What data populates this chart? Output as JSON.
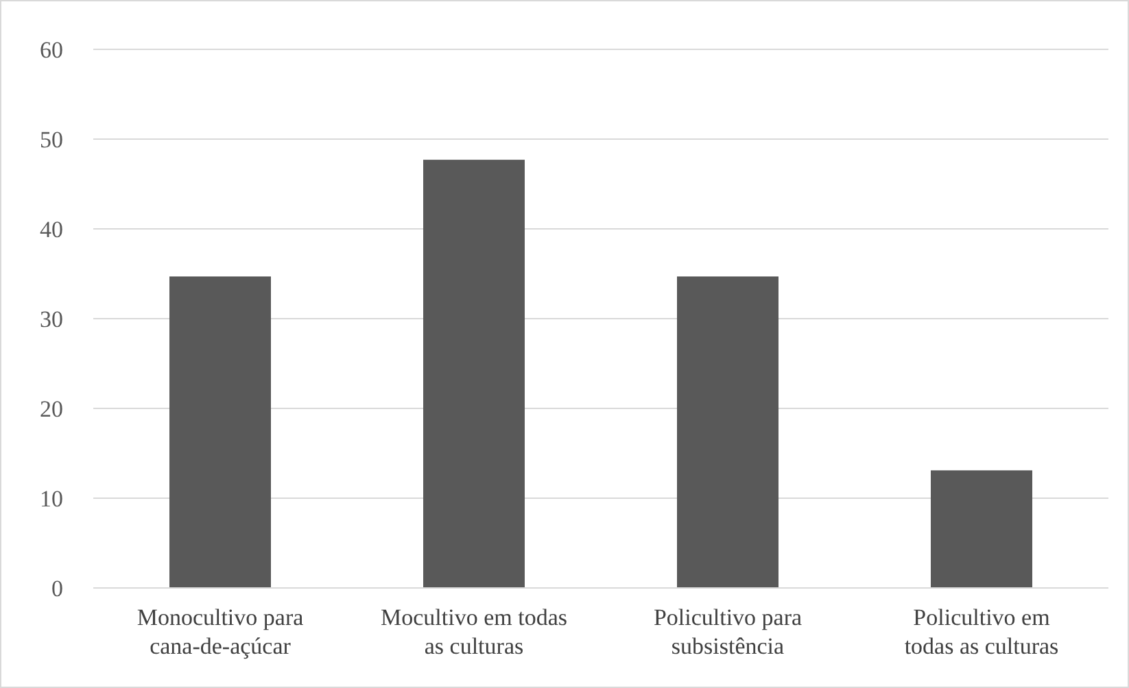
{
  "chart_data": {
    "type": "bar",
    "categories": [
      "Monocultivo para cana-de-açúcar",
      "Mocultivo em todas as culturas",
      "Policultivo para subsistência",
      "Policultivo em todas as culturas"
    ],
    "values": [
      34.7,
      47.7,
      34.7,
      13.1
    ],
    "color": "#595959",
    "ylim": [
      0,
      60
    ],
    "yticks": [
      0,
      10,
      20,
      30,
      40,
      50,
      60
    ],
    "grid": "y"
  }
}
